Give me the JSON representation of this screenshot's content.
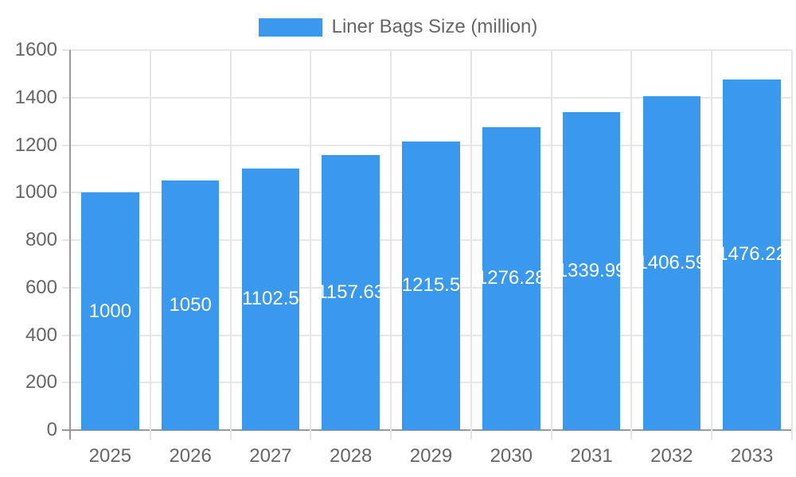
{
  "chart_data": {
    "type": "bar",
    "title": "",
    "xlabel": "",
    "ylabel": "",
    "legend": "Liner Bags Size (million)",
    "legend_position": "top",
    "grid": true,
    "categories": [
      "2025",
      "2026",
      "2027",
      "2028",
      "2029",
      "2030",
      "2031",
      "2032",
      "2033"
    ],
    "series": [
      {
        "name": "Liner Bags Size (million)",
        "color": "#3a99ec",
        "values": [
          1000,
          1050,
          1102.5,
          1157.63,
          1215.5,
          1276.28,
          1339.99,
          1406.59,
          1476.22
        ]
      }
    ],
    "ylim": [
      0,
      1600
    ],
    "ytick_step": 200,
    "yticks": [
      0,
      200,
      400,
      600,
      800,
      1000,
      1200,
      1400,
      1600
    ],
    "data_label_color": "#ffffff",
    "colors": {
      "bar": "#3a99ec",
      "grid_line": "#e6e6e6",
      "axis_line": "#999999",
      "tick_text": "#666666",
      "legend_text": "#666666",
      "background": "#ffffff"
    }
  }
}
